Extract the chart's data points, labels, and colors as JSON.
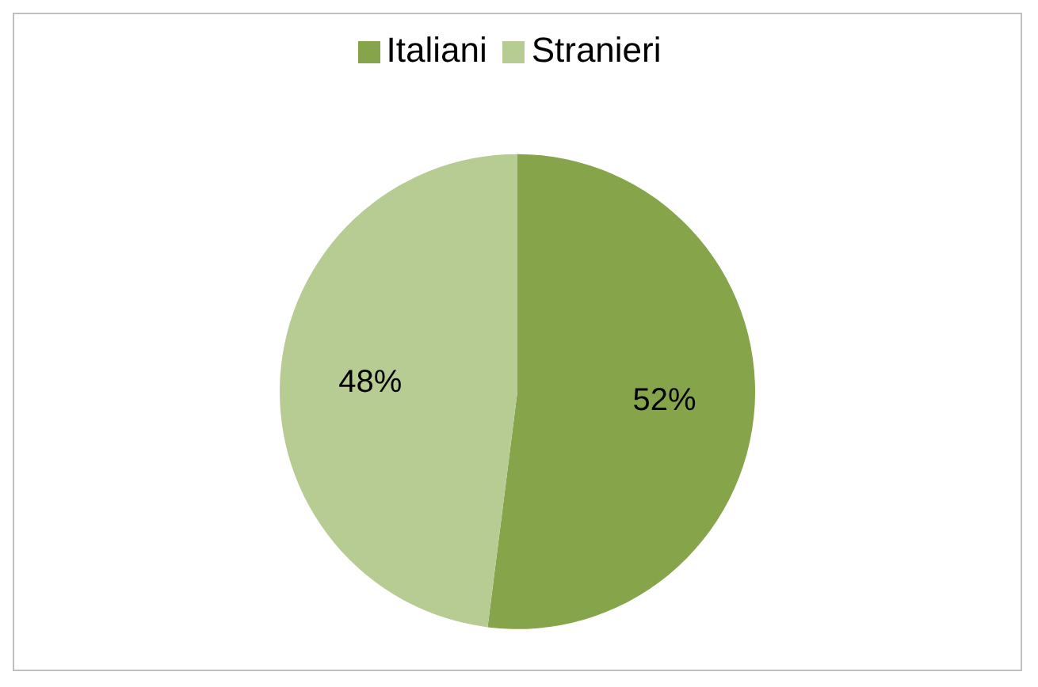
{
  "chart_data": {
    "type": "pie",
    "categories": [
      "Italiani",
      "Stranieri"
    ],
    "values": [
      52,
      48
    ],
    "colors": [
      "#86a44a",
      "#b7cc93"
    ],
    "value_labels": [
      "52%",
      "48%"
    ],
    "legend": "top"
  }
}
